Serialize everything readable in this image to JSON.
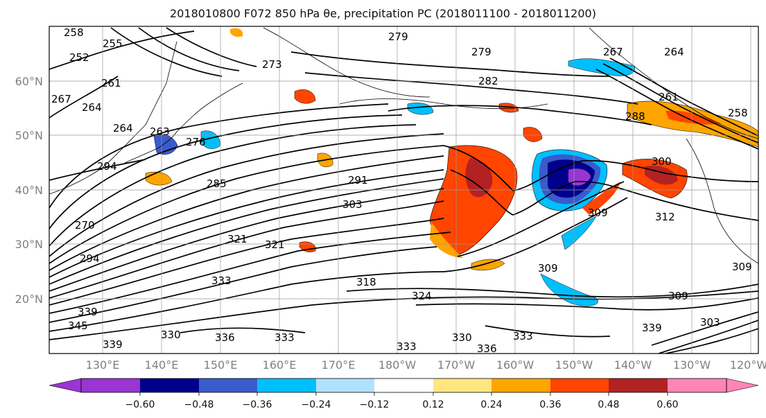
{
  "title": "2018010800 F072 850 hPa θe, precipitation PC (2018011100 - 2018011200)",
  "map": {
    "lat_labels": [
      "60°N",
      "50°N",
      "40°N",
      "30°N",
      "20°N"
    ],
    "lon_labels": [
      "130°E",
      "140°E",
      "150°E",
      "160°E",
      "170°E",
      "180°W",
      "170°W",
      "160°W",
      "150°W",
      "140°W",
      "130°W",
      "120°W"
    ],
    "contour_labels": [
      "258",
      "255",
      "252",
      "261",
      "267",
      "264",
      "264",
      "263",
      "276",
      "273",
      "279",
      "279",
      "282",
      "267",
      "264",
      "261",
      "258",
      "288",
      "285",
      "291",
      "303",
      "300",
      "309",
      "312",
      "294",
      "321",
      "321",
      "270",
      "294",
      "333",
      "318",
      "324",
      "309",
      "309",
      "339",
      "330",
      "336",
      "333",
      "333",
      "330",
      "336",
      "333",
      "339",
      "309",
      "339",
      "303",
      "345"
    ],
    "colors": {
      "border": "#000000",
      "gridline": "#999999",
      "contour": "#000000"
    }
  },
  "colorbar": {
    "tick_labels": [
      "−0.60",
      "−0.48",
      "−0.36",
      "−0.24",
      "−0.12",
      "0.12",
      "0.24",
      "0.36",
      "0.48",
      "0.60"
    ],
    "colors": [
      "#9a35d1",
      "#00008b",
      "#3a5bcc",
      "#00bfff",
      "#b0e2ff",
      "#ffffff",
      "#ffe680",
      "#ffa500",
      "#ff4500",
      "#b22222",
      "#ff85b4"
    ]
  }
}
